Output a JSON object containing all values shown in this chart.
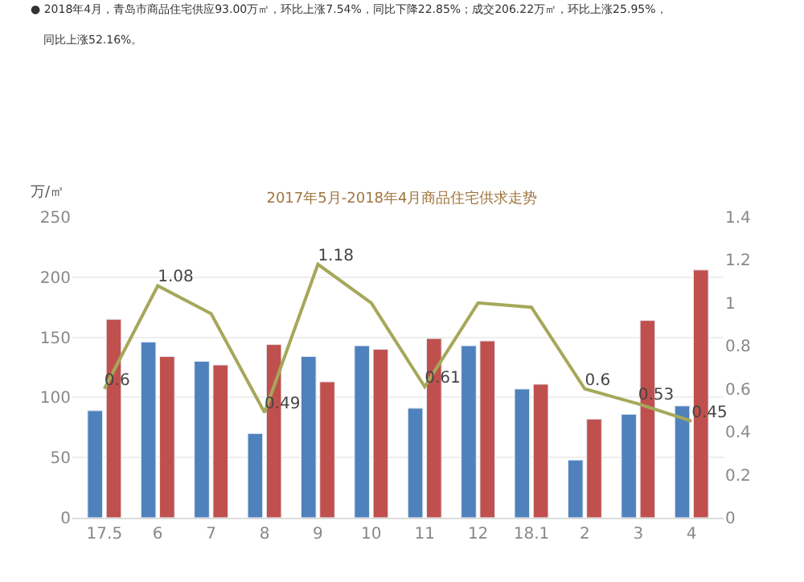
{
  "chart_data": {
    "type": "bar",
    "title": "2017年5月-2018年4月商品住宅供求走势",
    "ylabel": "万/㎡",
    "annotations": [
      "● 2018年4月，青岛市商品住宅供应93.00万㎡，环比上涨7.54%，同比下降22.85%；成交206.22万㎡，环比上涨25.95%，",
      "同比上涨52.16%。"
    ],
    "categories": [
      "17.5",
      "6",
      "7",
      "8",
      "9",
      "10",
      "11",
      "12",
      "18.1",
      "2",
      "3",
      "4"
    ],
    "series": [
      {
        "color": "#4f81bd",
        "values": [
          89,
          146,
          130,
          70,
          134,
          143,
          91,
          143,
          107,
          48,
          86,
          93
        ]
      },
      {
        "color": "#c0504d",
        "values": [
          165,
          134,
          127,
          144,
          113,
          140,
          149,
          147,
          111,
          82,
          164,
          206
        ]
      },
      {
        "type": "line",
        "axis": "y2",
        "color": "#a5a85a",
        "values": [
          0.6,
          1.08,
          0.95,
          0.49,
          1.18,
          1.0,
          0.61,
          1.0,
          0.98,
          0.6,
          0.53,
          0.45
        ],
        "value_labels": [
          "0.6",
          "1.08",
          null,
          "0.49",
          "1.18",
          null,
          "0.61",
          null,
          null,
          "0.6",
          "0.53",
          "0.45"
        ]
      }
    ],
    "ylim": [
      0,
      250
    ],
    "yticks": [
      0,
      50,
      100,
      150,
      200,
      250
    ],
    "y2lim": [
      0,
      1.4
    ],
    "y2ticks": [
      0,
      0.2,
      0.4,
      0.6,
      0.8,
      1,
      1.2,
      1.4
    ],
    "grid": "y",
    "legend": false,
    "marker": "none",
    "line_style": "solid"
  }
}
